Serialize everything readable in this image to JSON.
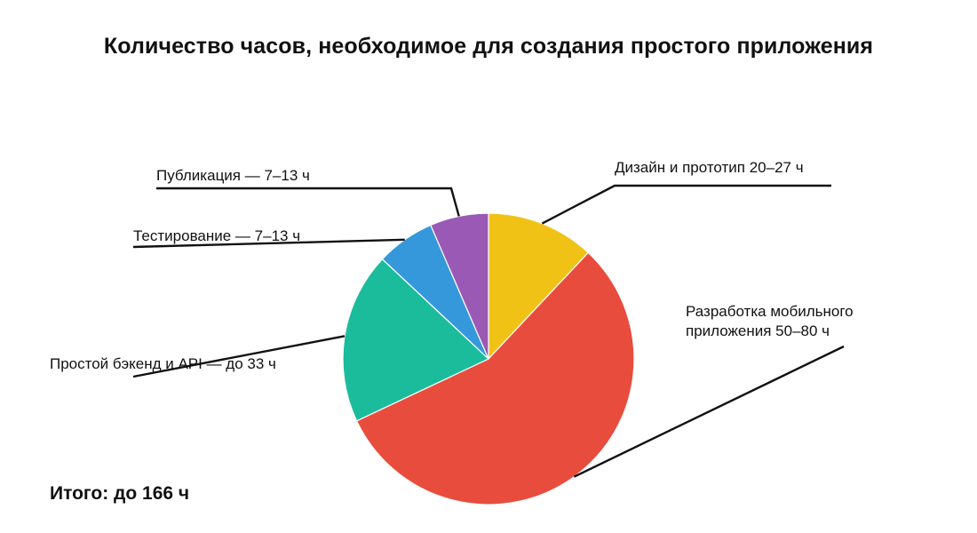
{
  "title": "Количество часов, необходимое для создания простого приложения",
  "total": "Итого: до 166 ч",
  "chart_data": {
    "type": "pie",
    "title": "Количество часов, необходимое для создания простого приложения",
    "start_angle_deg": 0,
    "direction": "clockwise",
    "slices": [
      {
        "label": "Дизайн и прототип 20–27 ч",
        "label_lines": [
          "Дизайн и прототип 20–27 ч"
        ],
        "value": 12,
        "color": "#f1c216"
      },
      {
        "label": "Разработка мобильного приложения 50–80 ч",
        "label_lines": [
          "Разработка мобильного",
          "приложения 50–80 ч"
        ],
        "value": 56,
        "color": "#e84c3d"
      },
      {
        "label": "Простой бэкенд и API — до 33 ч",
        "label_lines": [
          "Простой бэкенд и API — до 33 ч"
        ],
        "value": 19,
        "color": "#1bbc9b"
      },
      {
        "label": "Тестирование — 7–13 ч",
        "label_lines": [
          "Тестирование — 7–13 ч"
        ],
        "value": 6.5,
        "color": "#3598db"
      },
      {
        "label": "Публикация — 7–13 ч",
        "label_lines": [
          "Публикация — 7–13 ч"
        ],
        "value": 6.5,
        "color": "#9b59b6"
      }
    ]
  }
}
